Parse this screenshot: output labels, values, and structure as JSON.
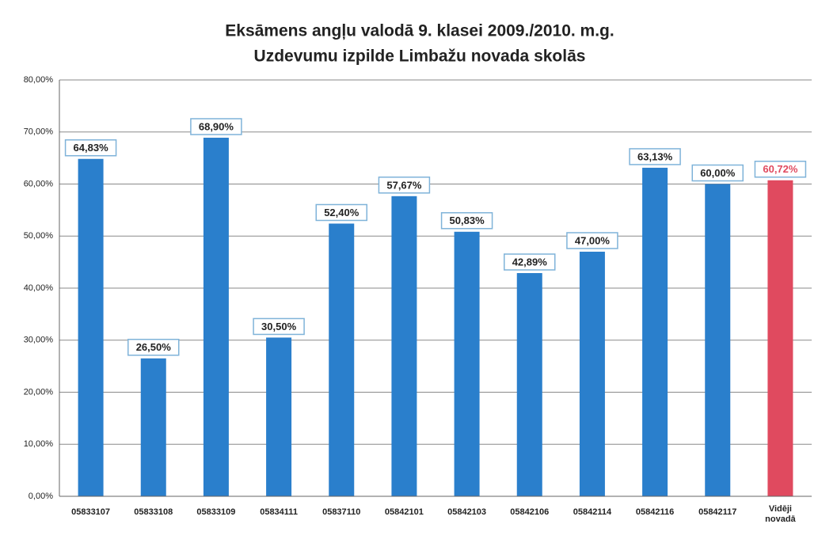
{
  "chart_data": {
    "type": "bar",
    "title": "Eksāmens angļu valodā 9. klasei 2009./2010. m.g.",
    "subtitle": "Uzdevumu izpilde Limbažu novada skolās",
    "categories": [
      "05833107",
      "05833108",
      "05833109",
      "05834111",
      "05837110",
      "05842101",
      "05842103",
      "05842106",
      "05842114",
      "05842116",
      "05842117",
      "Vidēji novadā"
    ],
    "values": [
      64.83,
      26.5,
      68.9,
      30.5,
      52.4,
      57.67,
      50.83,
      42.89,
      47.0,
      63.13,
      60.0,
      60.72
    ],
    "value_labels": [
      "64,83%",
      "26,50%",
      "68,90%",
      "30,50%",
      "52,40%",
      "57,67%",
      "50,83%",
      "42,89%",
      "47,00%",
      "63,13%",
      "60,00%",
      "60,72%"
    ],
    "colors": [
      "#2a7fcc",
      "#2a7fcc",
      "#2a7fcc",
      "#2a7fcc",
      "#2a7fcc",
      "#2a7fcc",
      "#2a7fcc",
      "#2a7fcc",
      "#2a7fcc",
      "#2a7fcc",
      "#2a7fcc",
      "#e04a5f"
    ],
    "ylim": [
      0,
      80
    ],
    "yticks": [
      {
        "value": 0,
        "label": "0,00%"
      },
      {
        "value": 10,
        "label": "10,00%"
      },
      {
        "value": 20,
        "label": "20,00%"
      },
      {
        "value": 30,
        "label": "30,00%"
      },
      {
        "value": 40,
        "label": "40,00%"
      },
      {
        "value": 50,
        "label": "50,00%"
      },
      {
        "value": 60,
        "label": "60,00%"
      },
      {
        "value": 70,
        "label": "70,00%"
      },
      {
        "value": 80,
        "label": "80,00%"
      }
    ],
    "grid": true
  }
}
